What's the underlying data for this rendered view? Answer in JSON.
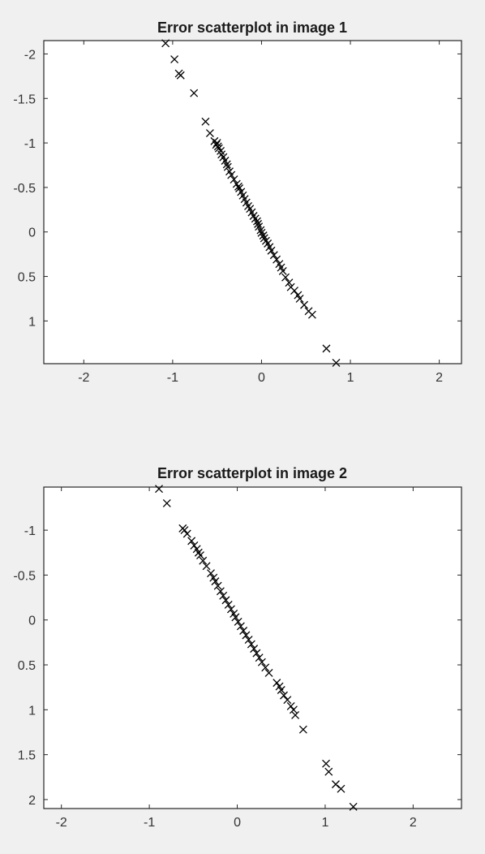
{
  "chart_data": [
    {
      "type": "scatter",
      "title": "Error scatterplot in image 1",
      "xlabel": "",
      "ylabel": "",
      "xlim": [
        -2.45,
        2.25
      ],
      "ylim": [
        -2.15,
        1.48
      ],
      "y_reversed": true,
      "grid": false,
      "marker": "x",
      "marker_color": "#000000",
      "x_ticks": [
        -2,
        -1,
        0,
        1,
        2
      ],
      "x_tick_labels": [
        "-2",
        "-1",
        "0",
        "1",
        "2"
      ],
      "y_ticks": [
        -2,
        -1.5,
        -1,
        -0.5,
        0,
        0.5,
        1
      ],
      "y_tick_labels": [
        "-2",
        "-1.5",
        "-1",
        "-0.5",
        "0",
        "0.5",
        "1"
      ],
      "points": [
        [
          -1.08,
          -2.12
        ],
        [
          -0.98,
          -1.94
        ],
        [
          -0.93,
          -1.78
        ],
        [
          -0.91,
          -1.76
        ],
        [
          -0.76,
          -1.56
        ],
        [
          -0.63,
          -1.24
        ],
        [
          -0.58,
          -1.11
        ],
        [
          -0.53,
          -1.02
        ],
        [
          -0.51,
          -0.98
        ],
        [
          -0.5,
          -1.0
        ],
        [
          -0.49,
          -0.96
        ],
        [
          -0.48,
          -0.94
        ],
        [
          -0.46,
          -0.91
        ],
        [
          -0.45,
          -0.87
        ],
        [
          -0.43,
          -0.84
        ],
        [
          -0.41,
          -0.8
        ],
        [
          -0.39,
          -0.76
        ],
        [
          -0.38,
          -0.73
        ],
        [
          -0.36,
          -0.68
        ],
        [
          -0.34,
          -0.64
        ],
        [
          -0.31,
          -0.59
        ],
        [
          -0.28,
          -0.54
        ],
        [
          -0.26,
          -0.51
        ],
        [
          -0.25,
          -0.49
        ],
        [
          -0.23,
          -0.45
        ],
        [
          -0.21,
          -0.41
        ],
        [
          -0.19,
          -0.37
        ],
        [
          -0.17,
          -0.33
        ],
        [
          -0.15,
          -0.29
        ],
        [
          -0.13,
          -0.26
        ],
        [
          -0.11,
          -0.22
        ],
        [
          -0.09,
          -0.18
        ],
        [
          -0.07,
          -0.15
        ],
        [
          -0.05,
          -0.12
        ],
        [
          -0.04,
          -0.09
        ],
        [
          -0.03,
          -0.06
        ],
        [
          -0.01,
          -0.02
        ],
        [
          0.0,
          0.01
        ],
        [
          0.02,
          0.04
        ],
        [
          0.03,
          0.07
        ],
        [
          0.05,
          0.1
        ],
        [
          0.07,
          0.13
        ],
        [
          0.09,
          0.17
        ],
        [
          0.11,
          0.21
        ],
        [
          0.14,
          0.26
        ],
        [
          0.17,
          0.31
        ],
        [
          0.2,
          0.36
        ],
        [
          0.22,
          0.4
        ],
        [
          0.24,
          0.44
        ],
        [
          0.27,
          0.51
        ],
        [
          0.31,
          0.57
        ],
        [
          0.33,
          0.62
        ],
        [
          0.37,
          0.66
        ],
        [
          0.41,
          0.71
        ],
        [
          0.43,
          0.75
        ],
        [
          0.48,
          0.82
        ],
        [
          0.53,
          0.89
        ],
        [
          0.57,
          0.93
        ],
        [
          0.73,
          1.31
        ],
        [
          0.84,
          1.47
        ]
      ]
    },
    {
      "type": "scatter",
      "title": "Error scatterplot in image 2",
      "xlabel": "",
      "ylabel": "",
      "xlim": [
        -2.2,
        2.55
      ],
      "ylim": [
        -1.48,
        2.1
      ],
      "y_reversed": true,
      "grid": false,
      "marker": "x",
      "marker_color": "#000000",
      "x_ticks": [
        -2,
        -1,
        0,
        1,
        2
      ],
      "x_tick_labels": [
        "-2",
        "-1",
        "0",
        "1",
        "2"
      ],
      "y_ticks": [
        -1,
        -0.5,
        0,
        0.5,
        1,
        1.5,
        2
      ],
      "y_tick_labels": [
        "-1",
        "-0.5",
        "0",
        "0.5",
        "1",
        "1.5",
        "2"
      ],
      "points": [
        [
          -0.89,
          -1.46
        ],
        [
          -0.8,
          -1.3
        ],
        [
          -0.62,
          -1.02
        ],
        [
          -0.6,
          -1.0
        ],
        [
          -0.57,
          -0.96
        ],
        [
          -0.52,
          -0.88
        ],
        [
          -0.49,
          -0.83
        ],
        [
          -0.46,
          -0.79
        ],
        [
          -0.44,
          -0.75
        ],
        [
          -0.42,
          -0.72
        ],
        [
          -0.39,
          -0.66
        ],
        [
          -0.35,
          -0.6
        ],
        [
          -0.3,
          -0.52
        ],
        [
          -0.27,
          -0.47
        ],
        [
          -0.25,
          -0.43
        ],
        [
          -0.22,
          -0.38
        ],
        [
          -0.19,
          -0.32
        ],
        [
          -0.16,
          -0.27
        ],
        [
          -0.13,
          -0.22
        ],
        [
          -0.1,
          -0.17
        ],
        [
          -0.07,
          -0.12
        ],
        [
          -0.04,
          -0.07
        ],
        [
          -0.02,
          -0.03
        ],
        [
          0.01,
          0.02
        ],
        [
          0.04,
          0.07
        ],
        [
          0.07,
          0.12
        ],
        [
          0.1,
          0.17
        ],
        [
          0.13,
          0.22
        ],
        [
          0.16,
          0.27
        ],
        [
          0.19,
          0.32
        ],
        [
          0.22,
          0.37
        ],
        [
          0.25,
          0.42
        ],
        [
          0.28,
          0.47
        ],
        [
          0.32,
          0.53
        ],
        [
          0.36,
          0.59
        ],
        [
          0.45,
          0.7
        ],
        [
          0.48,
          0.74
        ],
        [
          0.5,
          0.78
        ],
        [
          0.53,
          0.84
        ],
        [
          0.57,
          0.89
        ],
        [
          0.61,
          0.96
        ],
        [
          0.64,
          1.0
        ],
        [
          0.66,
          1.06
        ],
        [
          0.75,
          1.22
        ],
        [
          1.01,
          1.6
        ],
        [
          1.04,
          1.69
        ],
        [
          1.12,
          1.83
        ],
        [
          1.18,
          1.88
        ],
        [
          1.32,
          2.08
        ]
      ]
    }
  ]
}
